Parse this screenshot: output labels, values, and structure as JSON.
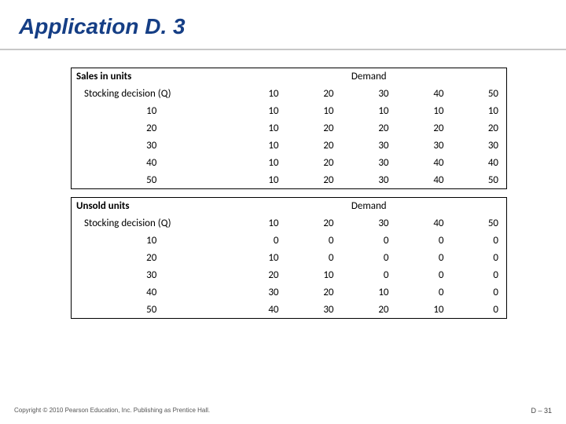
{
  "title": "Application D. 3",
  "table1": {
    "corner_label": "Sales in units",
    "span_label": "Demand",
    "row_header": "Stocking decision (Q)",
    "col_headers": [
      "10",
      "20",
      "30",
      "40",
      "50"
    ],
    "row_labels": [
      "10",
      "20",
      "30",
      "40",
      "50"
    ],
    "rows": [
      [
        "10",
        "10",
        "10",
        "10",
        "10"
      ],
      [
        "10",
        "20",
        "20",
        "20",
        "20"
      ],
      [
        "10",
        "20",
        "30",
        "30",
        "30"
      ],
      [
        "10",
        "20",
        "30",
        "40",
        "40"
      ],
      [
        "10",
        "20",
        "30",
        "40",
        "50"
      ]
    ]
  },
  "table2": {
    "corner_label": "Unsold units",
    "span_label": "Demand",
    "row_header": "Stocking decision (Q)",
    "col_headers": [
      "10",
      "20",
      "30",
      "40",
      "50"
    ],
    "row_labels": [
      "10",
      "20",
      "30",
      "40",
      "50"
    ],
    "rows": [
      [
        "0",
        "0",
        "0",
        "0",
        "0"
      ],
      [
        "10",
        "0",
        "0",
        "0",
        "0"
      ],
      [
        "20",
        "10",
        "0",
        "0",
        "0"
      ],
      [
        "30",
        "20",
        "10",
        "0",
        "0"
      ],
      [
        "40",
        "30",
        "20",
        "10",
        "0"
      ]
    ]
  },
  "footer": {
    "copyright": "Copyright © 2010 Pearson Education, Inc. Publishing as Prentice Hall.",
    "page": "D – 31"
  }
}
